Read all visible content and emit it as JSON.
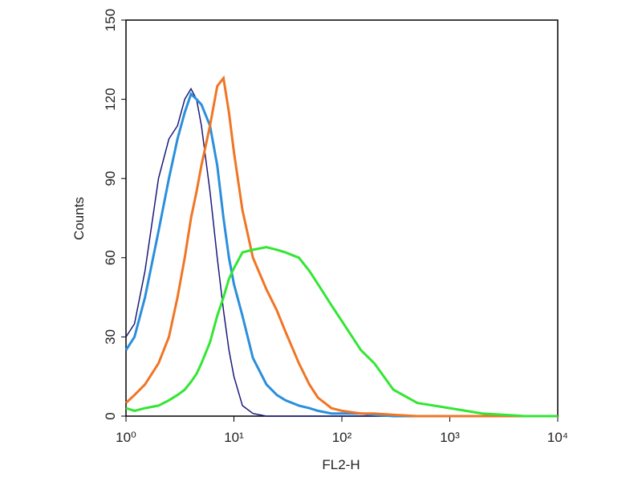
{
  "chart_data": {
    "type": "line",
    "xlabel": "FL2-H",
    "ylabel": "Counts",
    "xscale": "log",
    "xlim": [
      1,
      10000
    ],
    "xticks": [
      {
        "value": 1,
        "label": "10⁰"
      },
      {
        "value": 10,
        "label": "10¹"
      },
      {
        "value": 100,
        "label": "10²"
      },
      {
        "value": 1000,
        "label": "10³"
      },
      {
        "value": 10000,
        "label": "10⁴"
      }
    ],
    "ylim": [
      0,
      150
    ],
    "yticks": [
      0,
      30,
      60,
      90,
      120,
      150
    ],
    "x": [
      1,
      1.2,
      1.5,
      2,
      2.5,
      3,
      3.5,
      4,
      4.5,
      5,
      6,
      7,
      8,
      9,
      10,
      12,
      15,
      20,
      25,
      30,
      40,
      50,
      60,
      80,
      100,
      150,
      200,
      300,
      500,
      1000,
      2000,
      5000,
      10000
    ],
    "series": [
      {
        "color": "#1a1a7a",
        "values": [
          30,
          35,
          55,
          90,
          105,
          110,
          120,
          124,
          120,
          110,
          85,
          60,
          40,
          25,
          15,
          4,
          1,
          0,
          0,
          0,
          0,
          0,
          0,
          0,
          0,
          0,
          0,
          0,
          0,
          0,
          0,
          0,
          0
        ]
      },
      {
        "color": "#2a8fdc",
        "values": [
          25,
          30,
          45,
          70,
          90,
          105,
          115,
          122,
          120,
          118,
          110,
          95,
          75,
          60,
          50,
          38,
          22,
          12,
          8,
          6,
          4,
          3,
          2,
          1,
          1,
          1,
          0.5,
          0,
          0,
          0,
          0,
          0,
          0
        ]
      },
      {
        "color": "#f07524",
        "values": [
          5,
          8,
          12,
          20,
          30,
          45,
          60,
          75,
          85,
          95,
          110,
          125,
          128,
          115,
          100,
          78,
          60,
          48,
          40,
          32,
          20,
          12,
          7,
          3,
          2,
          1,
          1,
          0.5,
          0,
          0,
          0,
          0,
          0
        ]
      },
      {
        "color": "#33e633",
        "values": [
          3,
          2,
          3,
          4,
          6,
          8,
          10,
          13,
          16,
          20,
          28,
          38,
          45,
          52,
          56,
          62,
          63,
          64,
          63,
          62,
          60,
          55,
          50,
          42,
          36,
          25,
          20,
          10,
          5,
          3,
          1,
          0,
          0
        ]
      }
    ]
  }
}
